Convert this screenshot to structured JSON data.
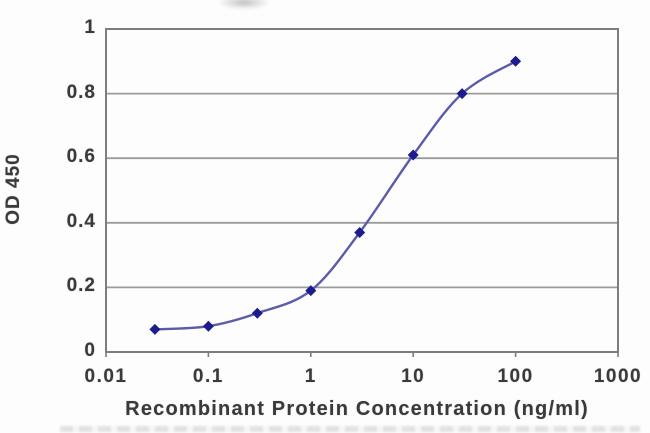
{
  "chart_data": {
    "type": "line",
    "xlabel": "Recombinant Protein Concentration (ng/ml)",
    "ylabel": "OD 450",
    "x_scale": "log",
    "xlim": [
      0.01,
      1000
    ],
    "ylim": [
      0,
      1
    ],
    "x_ticks": [
      "0.01",
      "0.1",
      "1",
      "10",
      "100",
      "1000"
    ],
    "y_ticks": [
      "0",
      "0.2",
      "0.4",
      "0.6",
      "0.8",
      "1"
    ],
    "grid": "horizontal-y",
    "legend": "none",
    "series": [
      {
        "x": [
          0.03,
          0.1,
          0.3,
          1,
          3,
          10,
          30,
          100
        ],
        "y": [
          0.07,
          0.08,
          0.12,
          0.19,
          0.37,
          0.61,
          0.8,
          0.9
        ],
        "marker": "diamond",
        "line_color": "#5b5baa",
        "marker_color": "#1c1c8f"
      }
    ]
  },
  "colors": {
    "grid": "#9b9b9b",
    "axis_border": "#7d7d7d",
    "tick_text": "#3a3a3a",
    "background": "#fdfdfd"
  }
}
